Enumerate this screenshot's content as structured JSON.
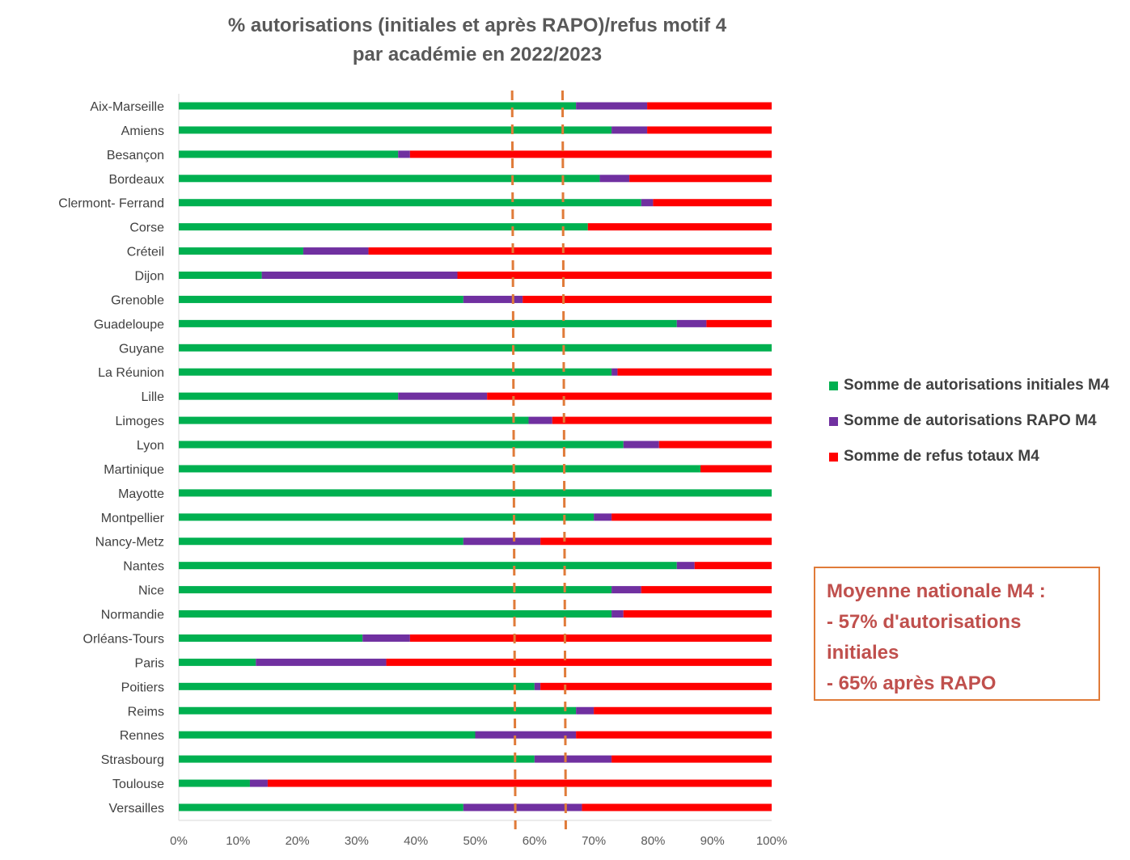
{
  "chart_data": {
    "type": "bar",
    "orientation": "horizontal",
    "stacked": "100%",
    "title": [
      "% autorisations (initiales et après RAPO)/refus motif 4",
      "par académie en 2022/2023"
    ],
    "categories": [
      "Aix-Marseille",
      "Amiens",
      "Besançon",
      "Bordeaux",
      "Clermont- Ferrand",
      "Corse",
      "Créteil",
      "Dijon",
      "Grenoble",
      "Guadeloupe",
      "Guyane",
      "La Réunion",
      "Lille",
      "Limoges",
      "Lyon",
      "Martinique",
      "Mayotte",
      "Montpellier",
      "Nancy-Metz",
      "Nantes",
      "Nice",
      "Normandie",
      "Orléans-Tours",
      "Paris",
      "Poitiers",
      "Reims",
      "Rennes",
      "Strasbourg",
      "Toulouse",
      "Versailles"
    ],
    "series": [
      {
        "name": "Somme de autorisations initiales M4",
        "color": "#00b050",
        "values": [
          67,
          73,
          37,
          71,
          78,
          69,
          21,
          14,
          48,
          84,
          100,
          73,
          37,
          59,
          75,
          88,
          100,
          70,
          48,
          84,
          73,
          73,
          31,
          13,
          60,
          67,
          50,
          60,
          12,
          48
        ]
      },
      {
        "name": "Somme de autorisations RAPO M4",
        "color": "#7030a0",
        "values": [
          12,
          6,
          2,
          5,
          2,
          0,
          11,
          33,
          10,
          5,
          0,
          1,
          15,
          4,
          6,
          0,
          0,
          3,
          13,
          3,
          5,
          2,
          8,
          22,
          1,
          3,
          17,
          13,
          3,
          20
        ]
      },
      {
        "name": "Somme de refus totaux M4",
        "color": "#ff0000",
        "values": [
          21,
          21,
          61,
          24,
          20,
          31,
          68,
          53,
          42,
          11,
          0,
          26,
          48,
          37,
          19,
          12,
          0,
          27,
          39,
          13,
          22,
          25,
          61,
          65,
          39,
          30,
          33,
          27,
          85,
          32
        ]
      }
    ],
    "xlim": [
      0,
      100
    ],
    "xticks": [
      "0%",
      "10%",
      "20%",
      "30%",
      "40%",
      "50%",
      "60%",
      "70%",
      "80%",
      "90%",
      "100%"
    ],
    "reference_lines": [
      {
        "value": 56.5,
        "color": "#e07b39",
        "style": "dashed"
      },
      {
        "value": 65,
        "color": "#e07b39",
        "style": "dashed"
      }
    ],
    "legend_position": "right",
    "grid": false
  },
  "annotation": {
    "lines": [
      "Moyenne nationale M4 :",
      "- 57% d'autorisations",
      "initiales",
      "- 65% après RAPO"
    ],
    "border_color": "#e07b39",
    "text_color": "#c0504d"
  }
}
